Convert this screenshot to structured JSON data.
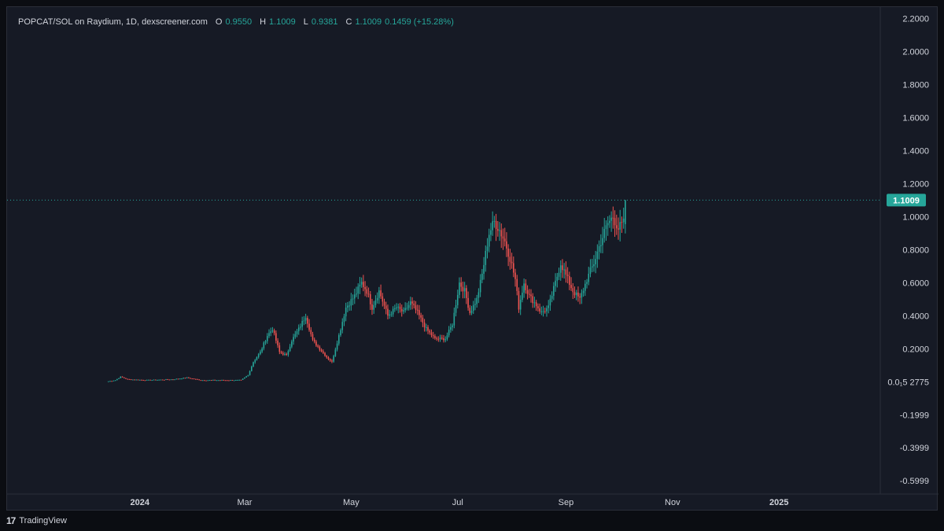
{
  "legend": {
    "pair": "POPCAT/SOL on Raydium, 1D, dexscreener.com",
    "o_label": "O",
    "o_value": "0.9550",
    "h_label": "H",
    "h_value": "1.1009",
    "l_label": "L",
    "l_value": "0.9381",
    "c_label": "C",
    "c_value": "1.1009",
    "change": "0.1459 (+15.28%)"
  },
  "footer": {
    "brand": "TradingView",
    "logo": "17"
  },
  "colors": {
    "up": "#26a69a",
    "down": "#ef5350",
    "price_tag": "#26a69a"
  },
  "chart_data": {
    "type": "candlestick",
    "title": "",
    "y_ticks": [
      "2.2000",
      "2.0000",
      "1.8000",
      "1.6000",
      "1.4000",
      "1.2000",
      "1.0000",
      "0.8000",
      "0.6000",
      "0.4000",
      "0.2000",
      "0.0₁5 2775",
      "-0.1999",
      "-0.3999",
      "-0.5999"
    ],
    "y_tick_values": [
      2.2,
      2.0,
      1.8,
      1.6,
      1.4,
      1.2,
      1.0,
      0.8,
      0.6,
      0.4,
      0.2,
      0.0,
      -0.2,
      -0.4,
      -0.6
    ],
    "x_ticks": [
      "2024",
      "Mar",
      "May",
      "Jul",
      "Sep",
      "Nov",
      "2025"
    ],
    "x_tick_dates": [
      "2024-01-01",
      "2024-03-01",
      "2024-05-01",
      "2024-07-01",
      "2024-09-01",
      "2024-11-01",
      "2025-01-01"
    ],
    "last_price": "1.1009",
    "ylim": [
      -0.68,
      2.27
    ],
    "xlim": [
      "2023-10-17",
      "2025-02-28"
    ],
    "grid": false,
    "anchors": [
      [
        "2023-12-14",
        0.003
      ],
      [
        "2023-12-18",
        0.01
      ],
      [
        "2023-12-21",
        0.03
      ],
      [
        "2023-12-25",
        0.015
      ],
      [
        "2024-01-05",
        0.01
      ],
      [
        "2024-01-20",
        0.015
      ],
      [
        "2024-01-28",
        0.025
      ],
      [
        "2024-02-05",
        0.01
      ],
      [
        "2024-02-28",
        0.01
      ],
      [
        "2024-03-03",
        0.04
      ],
      [
        "2024-03-06",
        0.12
      ],
      [
        "2024-03-10",
        0.18
      ],
      [
        "2024-03-14",
        0.28
      ],
      [
        "2024-03-17",
        0.32
      ],
      [
        "2024-03-21",
        0.18
      ],
      [
        "2024-03-25",
        0.16
      ],
      [
        "2024-03-28",
        0.25
      ],
      [
        "2024-04-01",
        0.32
      ],
      [
        "2024-04-05",
        0.4
      ],
      [
        "2024-04-09",
        0.25
      ],
      [
        "2024-04-13",
        0.2
      ],
      [
        "2024-04-17",
        0.15
      ],
      [
        "2024-04-20",
        0.12
      ],
      [
        "2024-04-24",
        0.28
      ],
      [
        "2024-04-28",
        0.45
      ],
      [
        "2024-05-03",
        0.52
      ],
      [
        "2024-05-07",
        0.6
      ],
      [
        "2024-05-10",
        0.55
      ],
      [
        "2024-05-13",
        0.45
      ],
      [
        "2024-05-17",
        0.55
      ],
      [
        "2024-05-22",
        0.4
      ],
      [
        "2024-05-27",
        0.45
      ],
      [
        "2024-05-31",
        0.42
      ],
      [
        "2024-06-04",
        0.48
      ],
      [
        "2024-06-08",
        0.42
      ],
      [
        "2024-06-13",
        0.32
      ],
      [
        "2024-06-18",
        0.26
      ],
      [
        "2024-06-24",
        0.26
      ],
      [
        "2024-06-28",
        0.35
      ],
      [
        "2024-07-02",
        0.6
      ],
      [
        "2024-07-05",
        0.55
      ],
      [
        "2024-07-08",
        0.42
      ],
      [
        "2024-07-12",
        0.5
      ],
      [
        "2024-07-15",
        0.65
      ],
      [
        "2024-07-19",
        0.9
      ],
      [
        "2024-07-22",
        0.97
      ],
      [
        "2024-07-25",
        0.92
      ],
      [
        "2024-07-28",
        0.85
      ],
      [
        "2024-07-31",
        0.75
      ],
      [
        "2024-08-03",
        0.62
      ],
      [
        "2024-08-05",
        0.45
      ],
      [
        "2024-08-08",
        0.6
      ],
      [
        "2024-08-11",
        0.52
      ],
      [
        "2024-08-14",
        0.48
      ],
      [
        "2024-08-18",
        0.42
      ],
      [
        "2024-08-22",
        0.45
      ],
      [
        "2024-08-26",
        0.6
      ],
      [
        "2024-08-29",
        0.72
      ],
      [
        "2024-09-02",
        0.62
      ],
      [
        "2024-09-05",
        0.55
      ],
      [
        "2024-09-09",
        0.5
      ],
      [
        "2024-09-13",
        0.62
      ],
      [
        "2024-09-17",
        0.72
      ],
      [
        "2024-09-21",
        0.85
      ],
      [
        "2024-09-25",
        0.96
      ],
      [
        "2024-09-28",
        1.0
      ],
      [
        "2024-10-01",
        0.93
      ],
      [
        "2024-10-04",
        0.96
      ],
      [
        "2024-10-05",
        1.1009
      ]
    ]
  }
}
